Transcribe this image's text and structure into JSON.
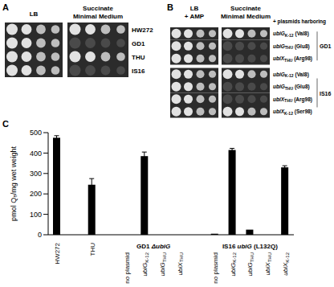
{
  "panels": [
    {
      "label": "A",
      "column_titles": [
        "LB",
        "Succinate Minimal Medium"
      ],
      "rows": [
        "HW272",
        "GD1",
        "THU",
        "IS16"
      ],
      "growth": [
        [
          true,
          true
        ],
        [
          true,
          false
        ],
        [
          true,
          true
        ],
        [
          true,
          false
        ]
      ]
    },
    {
      "label": "B",
      "column_titles": [
        "LB + AMP",
        "Succinate Minimal Medium"
      ],
      "header": "+ plasmids harboring",
      "groups": [
        {
          "strain": "GD1",
          "plasmids": [
            {
              "gene": "ubiG",
              "strain": "K-12",
              "residue": "(Val8)"
            },
            {
              "gene": "ubiG",
              "strain": "THU",
              "residue": "(Glu8)"
            },
            {
              "gene": "ubiX",
              "strain": "THU",
              "residue": "(Arg98)"
            }
          ],
          "growth": [
            [
              true,
              true
            ],
            [
              true,
              false
            ],
            [
              true,
              false
            ]
          ]
        },
        {
          "strain": "IS16",
          "plasmids": [
            {
              "gene": "ubiG",
              "strain": "K-12",
              "residue": "(Val8)"
            },
            {
              "gene": "ubiG",
              "strain": "THU",
              "residue": "(Glu8)"
            },
            {
              "gene": "ubiX",
              "strain": "THU",
              "residue": "(Arg98)"
            },
            {
              "gene": "ubiX",
              "strain": "K-12",
              "residue": "(Ser98)"
            }
          ],
          "growth": [
            [
              true,
              true
            ],
            [
              true,
              false
            ],
            [
              true,
              false
            ],
            [
              true,
              true
            ]
          ]
        }
      ]
    }
  ],
  "chart_data": {
    "type": "bar",
    "panel_label": "C",
    "y_label": "pmol Q₈/mg wet weight",
    "categories": [
      "HW272",
      null,
      "THU",
      null,
      "no plasmid",
      "ubiG K-12",
      "ubiG THU",
      "ubiX THU",
      null,
      "no plasmid",
      "ubiG K-12",
      "ubiG THU",
      "ubiX THU",
      "ubiX K-12"
    ],
    "values": [
      475,
      null,
      245,
      null,
      0,
      385,
      0,
      0,
      null,
      5,
      415,
      25,
      0,
      330
    ],
    "errors": [
      10,
      null,
      30,
      null,
      null,
      20,
      null,
      null,
      null,
      null,
      8,
      null,
      null,
      8
    ],
    "color": "#000000",
    "ylim": [
      0,
      500
    ],
    "yticks": [
      0,
      100,
      200,
      300,
      400,
      500
    ],
    "grid": false,
    "annotations": [
      {
        "text": "GD1 ΔubiG",
        "span": [
          4,
          7
        ]
      },
      {
        "text": "IS16 ubiG (L132Q)",
        "span": [
          9,
          13
        ]
      }
    ]
  }
}
